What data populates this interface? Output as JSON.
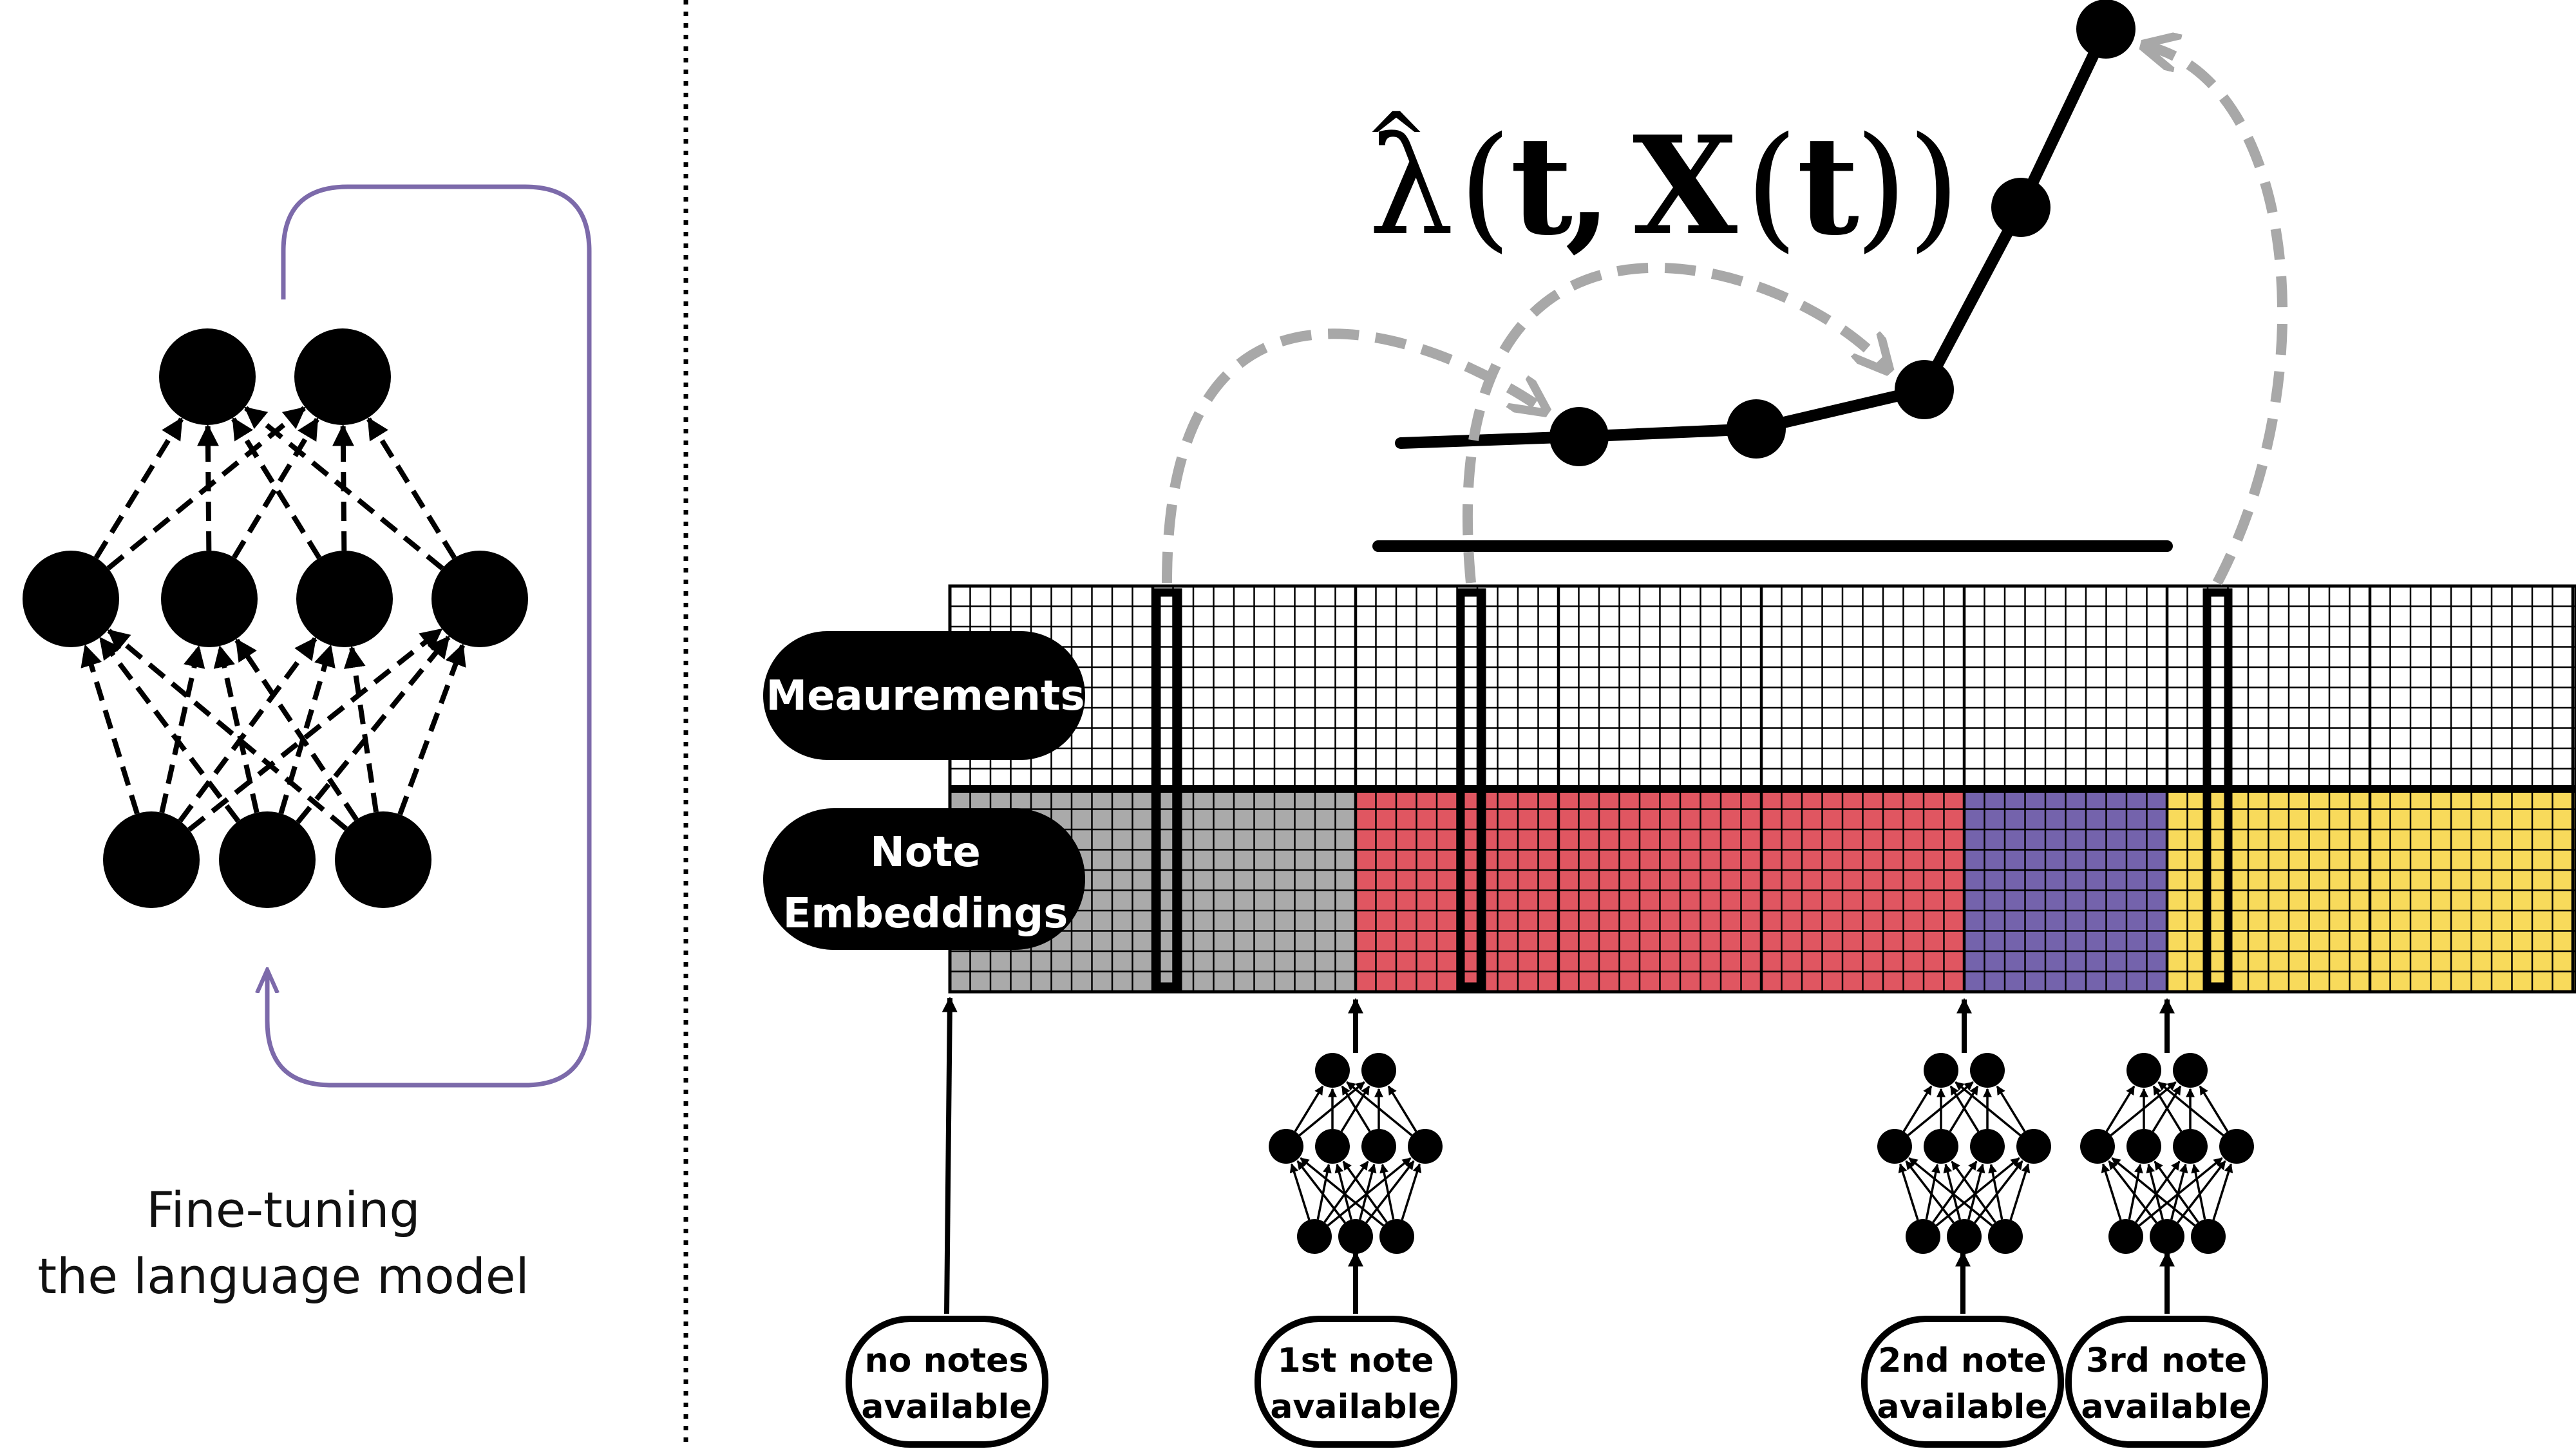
{
  "caption": {
    "line1": "Fine-tuning",
    "line2": "the language model"
  },
  "labels": {
    "measurements": "Meaurements",
    "note_embeddings_line1": "Note",
    "note_embeddings_line2": "Embeddings"
  },
  "formula": {
    "lambda": "λ",
    "hat": "^",
    "open_paren": "(",
    "t": "t",
    "comma": ",",
    "X": "X",
    "close_parens": "))"
  },
  "note_boxes": [
    {
      "line1": "no notes",
      "line2": "available"
    },
    {
      "line1": "1st note",
      "line2": "available"
    },
    {
      "line1": "2nd note",
      "line2": "available"
    },
    {
      "line1": "3rd note",
      "line2": "available"
    }
  ],
  "colors": {
    "gray_block": "#aaaaaa",
    "red_block": "#e05661",
    "purple_block": "#7463ac",
    "yellow_block": "#f8da5b",
    "loop_arrow": "#7c6aaa",
    "dashed_arrow": "#a8a8a8",
    "ink": "#000000"
  },
  "icons": {
    "network": "neural-network-icon",
    "loop": "fine-tune-loop-arrow-icon"
  }
}
